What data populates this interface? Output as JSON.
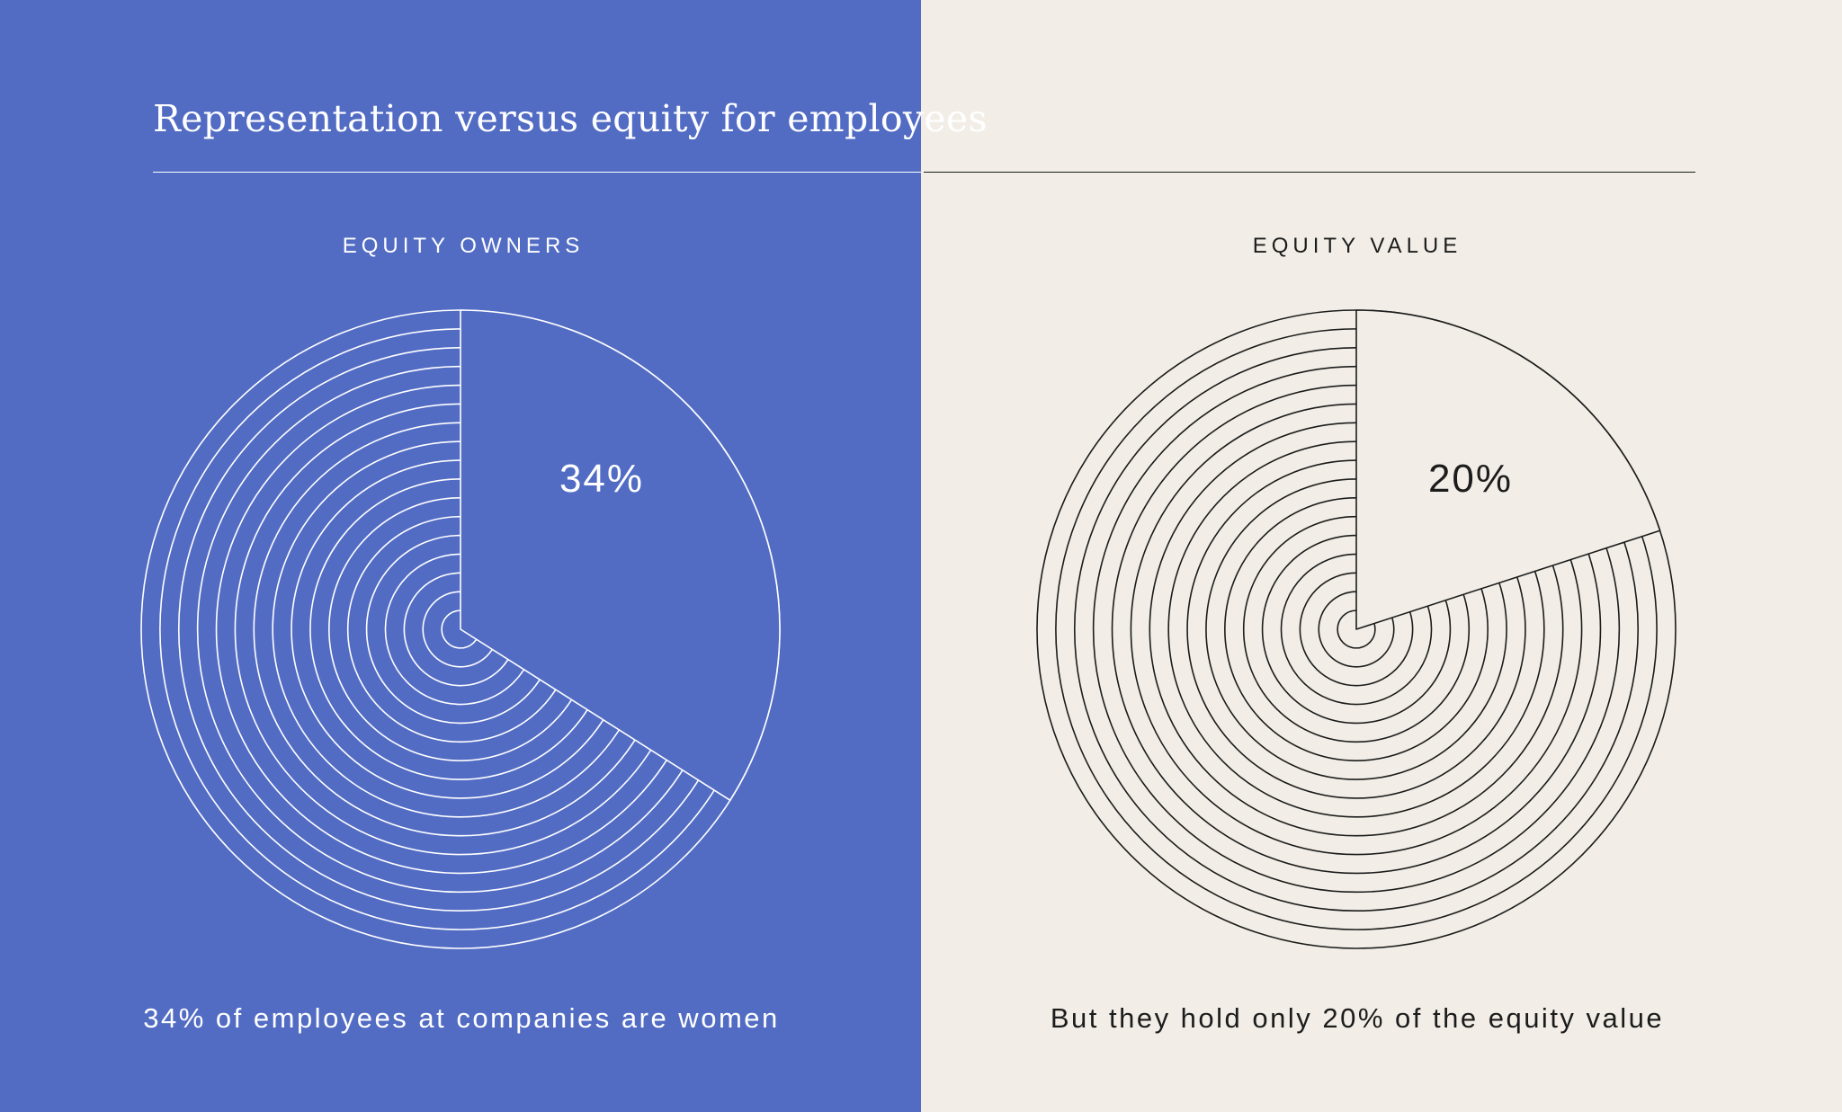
{
  "colors": {
    "left_background": "#526cc4",
    "right_background": "#f2eee7",
    "left_ink": "#ffffff",
    "right_ink": "#1c1c1c"
  },
  "title": "Representation versus equity for employees",
  "chart_data": [
    {
      "type": "pie",
      "title": "EQUITY OWNERS",
      "highlight_value": 34,
      "highlight_label": "34%",
      "caption": "34% of employees at companies are women"
    },
    {
      "type": "pie",
      "title": "EQUITY VALUE",
      "highlight_value": 20,
      "highlight_label": "20%",
      "caption": "But they hold only 20% of the equity value"
    }
  ]
}
